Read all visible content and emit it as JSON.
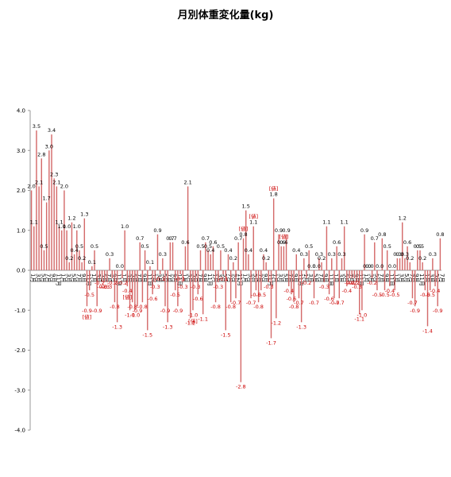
{
  "chart_data": {
    "type": "bar",
    "title": "月別体重変化量(kg)",
    "xlabel": "",
    "ylabel": "",
    "ylim": [
      -4,
      4
    ],
    "grid": false,
    "legend": "none",
    "bar_color": "#d46a6a",
    "positive_label_color": "#000000",
    "negative_label_color": "#cc0000",
    "y_ticks": [
      "4.0",
      "3.0",
      "2.0",
      "1.0",
      "0.0",
      "-1.0",
      "-2.0",
      "-3.0",
      "-4.0"
    ],
    "y_tick_values": [
      4,
      3,
      2,
      1,
      0,
      -1,
      -2,
      -3,
      -4
    ],
    "month_labels": [
      "1月",
      "2月",
      "3月",
      "4月",
      "5月",
      "6月",
      "7月",
      "8月",
      "9月",
      "10月",
      "11月",
      "12月"
    ],
    "values": [
      2.0,
      1.1,
      3.5,
      2.1,
      2.8,
      0.5,
      1.7,
      3.0,
      3.4,
      2.3,
      2.1,
      1.1,
      1.0,
      2.0,
      1.0,
      0.2,
      1.2,
      0.4,
      1.0,
      0.5,
      0.2,
      1.3,
      -0.9,
      -0.5,
      0.1,
      0.5,
      -0.9,
      -0.2,
      -0.3,
      -0.3,
      -0.3,
      0.3,
      -0.2,
      -0.8,
      -1.3,
      0.0,
      -0.2,
      1.0,
      -0.4,
      -1.0,
      -0.8,
      -1.0,
      -0.9,
      0.7,
      -0.8,
      0.5,
      -1.5,
      0.1,
      -0.6,
      -0.3,
      0.9,
      -0.1,
      0.3,
      -0.9,
      -1.3,
      0.7,
      0.7,
      -0.5,
      -0.9,
      -0.1,
      -0.3,
      0.6,
      2.1,
      -1.2,
      -1.0,
      -0.3,
      -0.6,
      0.5,
      -1.1,
      0.7,
      0.5,
      0.4,
      0.6,
      -0.8,
      -0.3,
      0.5,
      -0.1,
      -1.5,
      0.4,
      -0.8,
      0.2,
      -0.7,
      0.7,
      -2.8,
      0.8,
      1.5,
      0.4,
      -0.7,
      1.1,
      -0.5,
      -0.8,
      -0.5,
      0.4,
      0.2,
      -0.3,
      -1.7,
      1.8,
      -1.2,
      0.9,
      0.6,
      0.6,
      0.9,
      -0.4,
      -0.6,
      -0.8,
      0.4,
      -0.7,
      -1.3,
      0.3,
      -0.2,
      0.5,
      0.0,
      -0.7,
      0.0,
      0.3,
      0.2,
      -0.3,
      1.1,
      -0.6,
      0.3,
      -0.7,
      0.6,
      -0.7,
      0.3,
      1.1,
      -0.4,
      -0.2,
      -0.2,
      -0.2,
      -0.3,
      -1.1,
      -1.0,
      0.9,
      0.0,
      0.0,
      -0.2,
      0.7,
      -0.5,
      0.0,
      0.8,
      -0.5,
      0.5,
      -0.4,
      0.0,
      -0.5,
      0.3,
      0.3,
      1.2,
      0.3,
      0.6,
      0.2,
      -0.7,
      -0.9,
      0.5,
      0.5,
      0.2,
      -0.5,
      -1.4,
      -0.5,
      0.3,
      -0.4,
      -0.9,
      0.8
    ],
    "annotations": [
      "[値]",
      "[値]",
      "[値]",
      "[値]",
      "[値]",
      "[値]",
      "[値]"
    ]
  }
}
